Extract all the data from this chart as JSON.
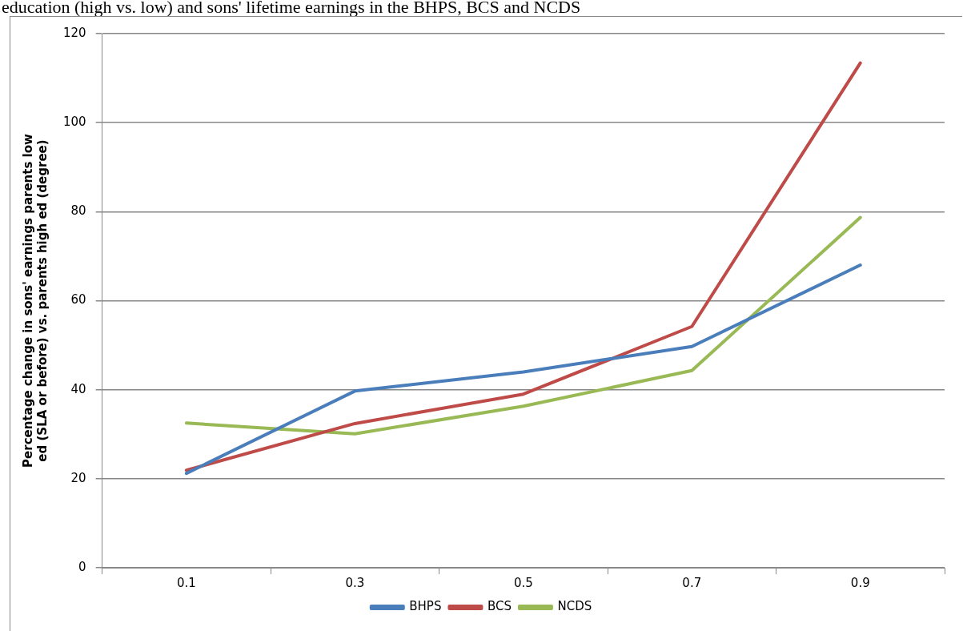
{
  "chart_data": {
    "type": "line",
    "title": "education (high vs. low) and sons' lifetime earnings in the BHPS, BCS and NCDS",
    "ylabel": "Percentage change in sons' earnings parents low ed (SLA or before) vs. parents high ed (degree)",
    "categories": [
      "0.1",
      "0.3",
      "0.5",
      "0.7",
      "0.9"
    ],
    "series": [
      {
        "name": "BHPS",
        "color": "#4a7ebb",
        "values": [
          21.2,
          39.7,
          44.0,
          49.7,
          68.0
        ]
      },
      {
        "name": "BCS",
        "color": "#be4b48",
        "values": [
          21.9,
          32.4,
          39.0,
          54.2,
          113.4
        ]
      },
      {
        "name": "NCDS",
        "color": "#98b954",
        "values": [
          32.5,
          30.1,
          36.3,
          44.3,
          78.7
        ]
      }
    ],
    "ylim": [
      0,
      120
    ],
    "yticks": [
      0,
      20,
      40,
      60,
      80,
      100,
      120
    ],
    "grid": "y",
    "legend": "bottom",
    "marker": "none",
    "line_style": "solid"
  }
}
